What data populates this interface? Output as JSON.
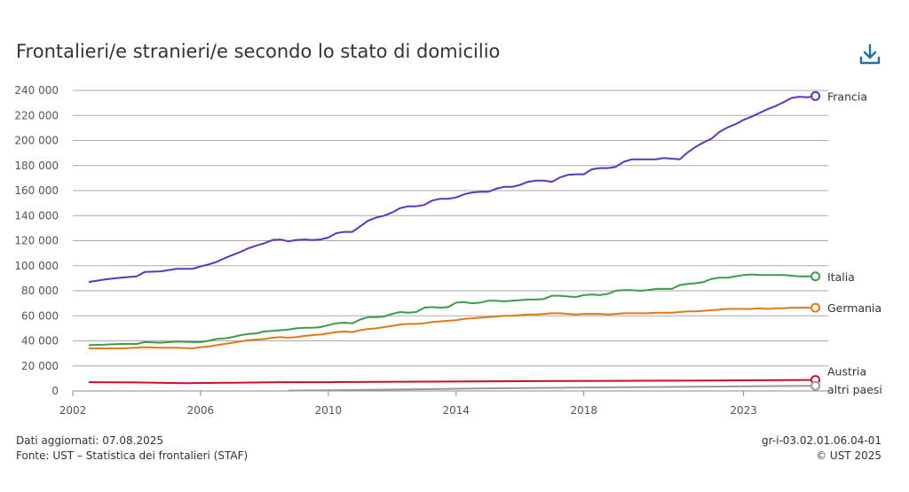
{
  "title": "Frontalieri/e stranieri/e secondo lo stato di domicilio",
  "download_icon": "download-icon",
  "footer": {
    "updated": "Dati aggiornati: 07.08.2025",
    "source": "Fonte: UST – Statistica dei frontalieri (STAF)",
    "code": "gr-i-03.02.01.06.04-01",
    "copyright": "© UST 2025"
  },
  "chart_data": {
    "type": "line",
    "title": "Frontalieri/e stranieri/e secondo lo stato di domicilio",
    "xlim": [
      2002.0,
      2025.65
    ],
    "ylim": [
      0,
      240000
    ],
    "x_ticks": [
      2002,
      2006,
      2010,
      2014,
      2018,
      2023
    ],
    "y_ticks": [
      0,
      20000,
      40000,
      60000,
      80000,
      100000,
      120000,
      140000,
      160000,
      180000,
      200000,
      220000,
      240000
    ],
    "y_tick_labels": [
      "0",
      "20 000",
      "40 000",
      "60 000",
      "80 000",
      "100 000",
      "120 000",
      "140 000",
      "160 000",
      "180 000",
      "200 000",
      "220 000",
      "240 000"
    ],
    "grid": true,
    "legend": "end-of-line labels",
    "series": [
      {
        "name": "Francia",
        "color": "#5d35c0",
        "x": [
          2002.5,
          2003,
          2003.5,
          2004,
          2004.25,
          2004.75,
          2005.25,
          2005.75,
          2006,
          2006.25,
          2006.5,
          2006.75,
          2007,
          2007.25,
          2007.5,
          2007.75,
          2008,
          2008.25,
          2008.5,
          2008.75,
          2009,
          2009.25,
          2009.5,
          2009.75,
          2010,
          2010.25,
          2010.5,
          2010.75,
          2011,
          2011.25,
          2011.5,
          2011.75,
          2012,
          2012.25,
          2012.5,
          2012.75,
          2013,
          2013.25,
          2013.5,
          2013.75,
          2014,
          2014.25,
          2014.5,
          2014.75,
          2015,
          2015.25,
          2015.5,
          2015.75,
          2016,
          2016.25,
          2016.5,
          2016.75,
          2017,
          2017.25,
          2017.5,
          2017.75,
          2018,
          2018.25,
          2018.5,
          2018.75,
          2019,
          2019.25,
          2019.5,
          2019.75,
          2020,
          2020.25,
          2020.5,
          2020.75,
          2021,
          2021.25,
          2021.5,
          2021.75,
          2022,
          2022.25,
          2022.5,
          2022.75,
          2023,
          2023.25,
          2023.5,
          2023.75,
          2024,
          2024.25,
          2024.5,
          2024.75,
          2025,
          2025.25
        ],
        "y": [
          87000,
          89000,
          90500,
          91500,
          95000,
          95500,
          97500,
          97500,
          99500,
          101000,
          103000,
          106000,
          108500,
          111000,
          114000,
          116000,
          118000,
          120500,
          121000,
          119500,
          120500,
          121000,
          120500,
          121000,
          122500,
          126000,
          127000,
          127000,
          131500,
          136000,
          138500,
          140000,
          142500,
          146000,
          147500,
          147500,
          148500,
          152000,
          153500,
          153500,
          154500,
          157000,
          158500,
          159000,
          159000,
          161500,
          163000,
          163000,
          164500,
          167000,
          168000,
          168000,
          167000,
          170500,
          172500,
          173000,
          173000,
          177000,
          178000,
          178000,
          179000,
          183000,
          185000,
          185000,
          185000,
          185000,
          186000,
          185500,
          185000,
          190500,
          195000,
          198500,
          201500,
          207000,
          210500,
          213000,
          216500,
          219000,
          222000,
          225000,
          227500,
          230500,
          234000,
          235000,
          234500,
          235500
        ]
      },
      {
        "name": "Italia",
        "color": "#3d9c4a",
        "x": [
          2002.5,
          2003,
          2003.5,
          2004,
          2004.25,
          2004.75,
          2005.25,
          2005.75,
          2006,
          2006.25,
          2006.5,
          2006.75,
          2007,
          2007.25,
          2007.5,
          2007.75,
          2008,
          2008.25,
          2008.5,
          2008.75,
          2009,
          2009.25,
          2009.5,
          2009.75,
          2010,
          2010.25,
          2010.5,
          2010.75,
          2011,
          2011.25,
          2011.5,
          2011.75,
          2012,
          2012.25,
          2012.5,
          2012.75,
          2013,
          2013.25,
          2013.5,
          2013.75,
          2014,
          2014.25,
          2014.5,
          2014.75,
          2015,
          2015.25,
          2015.5,
          2015.75,
          2016,
          2016.25,
          2016.5,
          2016.75,
          2017,
          2017.25,
          2017.5,
          2017.75,
          2018,
          2018.25,
          2018.5,
          2018.75,
          2019,
          2019.25,
          2019.5,
          2019.75,
          2020,
          2020.25,
          2020.5,
          2020.75,
          2021,
          2021.25,
          2021.5,
          2021.75,
          2022,
          2022.25,
          2022.5,
          2022.75,
          2023,
          2023.25,
          2023.5,
          2023.75,
          2024,
          2024.25,
          2024.5,
          2024.75,
          2025,
          2025.25
        ],
        "y": [
          36500,
          37000,
          37500,
          37500,
          39000,
          38500,
          39500,
          39000,
          39000,
          40000,
          41500,
          42000,
          43000,
          44500,
          45500,
          46000,
          47500,
          48000,
          48500,
          49000,
          50000,
          50500,
          50500,
          51000,
          52500,
          54000,
          54500,
          54000,
          57000,
          59000,
          59000,
          59500,
          61500,
          63000,
          62500,
          63000,
          66500,
          67000,
          66500,
          67000,
          70500,
          71000,
          70000,
          70500,
          72000,
          72000,
          71500,
          72000,
          72500,
          73000,
          73000,
          73500,
          76000,
          76000,
          75500,
          75000,
          76500,
          77000,
          76500,
          77500,
          80000,
          80500,
          80500,
          80000,
          80500,
          81500,
          81500,
          81500,
          84500,
          85500,
          86000,
          87000,
          89500,
          90500,
          90500,
          91500,
          92500,
          93000,
          92500,
          92500,
          92500,
          92500,
          92000,
          91500,
          91500,
          91500
        ]
      },
      {
        "name": "Germania",
        "color": "#e07a18",
        "x": [
          2002.5,
          2003,
          2003.5,
          2004,
          2004.25,
          2004.75,
          2005.25,
          2005.75,
          2006,
          2006.25,
          2006.5,
          2006.75,
          2007,
          2007.25,
          2007.5,
          2007.75,
          2008,
          2008.25,
          2008.5,
          2008.75,
          2009,
          2009.25,
          2009.5,
          2009.75,
          2010,
          2010.25,
          2010.5,
          2010.75,
          2011,
          2011.25,
          2011.5,
          2011.75,
          2012,
          2012.25,
          2012.5,
          2012.75,
          2013,
          2013.25,
          2013.5,
          2013.75,
          2014,
          2014.25,
          2014.5,
          2014.75,
          2015,
          2015.25,
          2015.5,
          2015.75,
          2016,
          2016.25,
          2016.5,
          2016.75,
          2017,
          2017.25,
          2017.5,
          2017.75,
          2018,
          2018.25,
          2018.5,
          2018.75,
          2019,
          2019.25,
          2019.5,
          2019.75,
          2020,
          2020.25,
          2020.5,
          2020.75,
          2021,
          2021.25,
          2021.5,
          2021.75,
          2022,
          2022.25,
          2022.5,
          2022.75,
          2023,
          2023.25,
          2023.5,
          2023.75,
          2024,
          2024.25,
          2024.5,
          2024.75,
          2025,
          2025.25
        ],
        "y": [
          34000,
          34000,
          34000,
          34500,
          35000,
          34500,
          34500,
          34000,
          35000,
          35500,
          36500,
          37500,
          38500,
          39500,
          40500,
          41000,
          41500,
          42500,
          43000,
          42500,
          43000,
          44000,
          44500,
          45000,
          46000,
          47000,
          47500,
          47000,
          48500,
          49500,
          50000,
          51000,
          52000,
          53000,
          53500,
          53500,
          54000,
          55000,
          55500,
          56000,
          56500,
          57500,
          58000,
          58500,
          59000,
          59500,
          60000,
          60000,
          60500,
          61000,
          61000,
          61500,
          62000,
          62000,
          61500,
          61000,
          61500,
          61500,
          61500,
          61000,
          61500,
          62000,
          62000,
          62000,
          62000,
          62500,
          62500,
          62500,
          63000,
          63500,
          63500,
          64000,
          64500,
          65000,
          65500,
          65500,
          65500,
          65500,
          66000,
          65500,
          66000,
          66000,
          66500,
          66500,
          66500,
          66500
        ]
      },
      {
        "name": "Austria",
        "color": "#c8102e",
        "x": [
          2002.5,
          2004,
          2005.5,
          2007,
          2008.5,
          2010,
          2011.5,
          2013,
          2014.5,
          2016,
          2017.5,
          2019,
          2020.5,
          2022,
          2023.5,
          2025.25
        ],
        "y": [
          7000,
          6800,
          6200,
          6600,
          7000,
          7000,
          7200,
          7400,
          7600,
          7800,
          8000,
          8100,
          8200,
          8300,
          8600,
          8800
        ]
      },
      {
        "name": "altri paesi",
        "color": "#999999",
        "x": [
          2008.75,
          2010,
          2011.5,
          2013,
          2014.5,
          2016,
          2017.5,
          2019,
          2020.5,
          2022,
          2023.5,
          2025.25
        ],
        "y": [
          300,
          600,
          1000,
          1400,
          1900,
          2300,
          2600,
          2900,
          3200,
          3500,
          3800,
          4100
        ]
      }
    ]
  }
}
